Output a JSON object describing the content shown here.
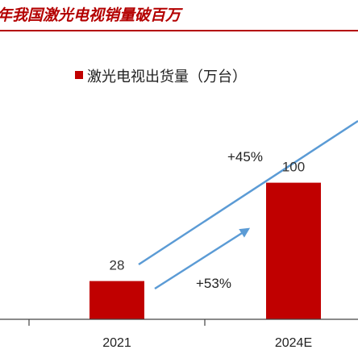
{
  "chart_data": {
    "type": "bar",
    "title": "年我国激光电视销量破百万",
    "legend": "激光电视出货量（万台）",
    "legend_position": "top-center",
    "categories": [
      "2021",
      "2024E"
    ],
    "series": [
      {
        "name": "激光电视出货量（万台）",
        "values": [
          28,
          100
        ]
      }
    ],
    "data_labels": [
      "28",
      "100"
    ],
    "annotations": [
      "+45%",
      "+53%"
    ],
    "ylim": [
      0,
      170
    ],
    "grid": false,
    "colors": {
      "bar": "#c00000",
      "arrow": "#5b9bd5",
      "title": "#b40000",
      "axis": "#444444"
    }
  }
}
